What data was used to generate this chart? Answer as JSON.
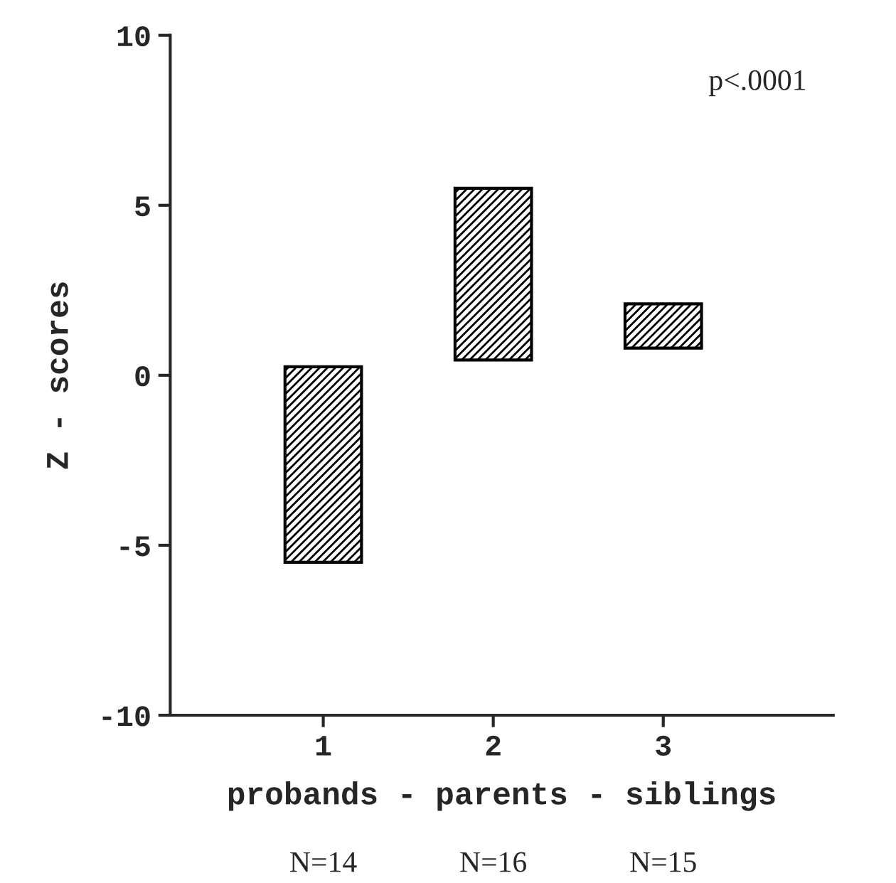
{
  "chart_data": {
    "type": "bar",
    "xlabel": "probands - parents - siblings",
    "ylabel": "Z - scores",
    "categories": [
      "1",
      "2",
      "3"
    ],
    "base": [
      -5.5,
      0.45,
      0.8
    ],
    "values": [
      5.75,
      5.05,
      1.3
    ],
    "color": "#000000",
    "ylim": [
      -10,
      10
    ],
    "yticks": [
      -10,
      -5,
      0,
      5,
      10
    ],
    "annotations": [
      "p<.0001",
      "N=14",
      "N=16",
      "N=15"
    ],
    "grid": false
  }
}
